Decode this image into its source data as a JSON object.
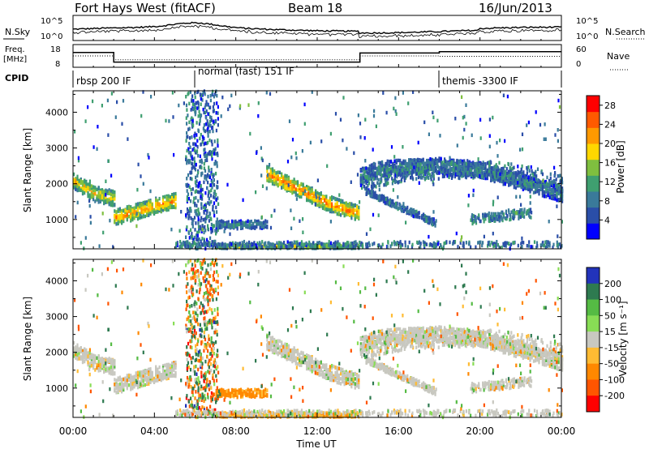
{
  "header": {
    "station": "Fort Hays West (fitACF)",
    "beam": "Beam 18",
    "date": "16/Jun/2013"
  },
  "noise_panel": {
    "left_label": "N.Sky",
    "right_label": "N.Search",
    "left_ticks": [
      "10^5",
      "10^0"
    ],
    "right_ticks": [
      "10^5",
      "10^0"
    ]
  },
  "freq_panel": {
    "left_label_line1": "Freq.",
    "left_label_line2": "[MHz]",
    "left_ticks": [
      "18",
      "8"
    ],
    "right_label": "Nave",
    "right_ticks": [
      "60",
      "0"
    ],
    "freq_segments": [
      {
        "start": 0.0,
        "end": 2.0,
        "value": 14.5
      },
      {
        "start": 2.0,
        "end": 14.1,
        "value": 10.3
      },
      {
        "start": 14.1,
        "end": 18.0,
        "value": 14.3
      },
      {
        "start": 18.0,
        "end": 24.0,
        "value": 14.9
      }
    ],
    "nave_segments": [
      {
        "start": 0.0,
        "end": 2.0,
        "value": 30
      },
      {
        "start": 2.0,
        "end": 14.1,
        "value": 20
      },
      {
        "start": 14.1,
        "end": 18.0,
        "value": 30
      },
      {
        "start": 18.0,
        "end": 24.0,
        "value": 29
      }
    ]
  },
  "cpid": {
    "label": "CPID",
    "modes": [
      {
        "text": "rbsp 200 IF",
        "start": 0.0
      },
      {
        "text": "normal (fast) 151 IF",
        "start": 6.0
      },
      {
        "text": "themis -3300 IF",
        "start": 18.0
      }
    ]
  },
  "colors": {
    "power": [
      "#0000ff",
      "#2a4ea8",
      "#3a7a9a",
      "#3f9f70",
      "#7fbf3f",
      "#ffd700",
      "#ff9900",
      "#ff5a00",
      "#ff0000"
    ],
    "velocity": [
      "#2233bb",
      "#2e7a50",
      "#55bb44",
      "#88dd55",
      "#c8c8c0",
      "#ffbb33",
      "#ff8800",
      "#ff5500",
      "#ff0000"
    ]
  },
  "chart_data": [
    {
      "type": "heatmap",
      "name": "power",
      "ylabel": "Slant Range [km]",
      "xlim": [
        0,
        24
      ],
      "ylim": [
        180,
        4600
      ],
      "yticks": [
        1000,
        2000,
        3000,
        4000
      ],
      "x_ticks": [
        "00:00",
        "04:00",
        "08:00",
        "12:00",
        "16:00",
        "20:00",
        "00:00"
      ],
      "colorbar_label": "Power [dB]",
      "colorbar_ticks": [
        "4",
        "8",
        "12",
        "16",
        "20",
        "24",
        "28"
      ],
      "colorbar_range": [
        0,
        30
      ],
      "features": [
        {
          "x": [
            0.0,
            0.5,
            1.0,
            1.5,
            2.0
          ],
          "y": [
            2080,
            1900,
            1720,
            1650,
            1580
          ],
          "power": 20
        },
        {
          "x": [
            2.0,
            3.0,
            4.0,
            5.0
          ],
          "y": [
            1050,
            1200,
            1380,
            1520
          ],
          "power": 22
        },
        {
          "x": [
            9.5,
            10.5,
            11.5,
            12.5,
            13.5,
            14.0
          ],
          "y": [
            2280,
            2000,
            1720,
            1450,
            1250,
            1180
          ],
          "power": 24
        },
        {
          "x": [
            14.1,
            15.0,
            16.0,
            18.0,
            20.0,
            22.0,
            24.0
          ],
          "y": [
            2200,
            2400,
            2450,
            2500,
            2380,
            2050,
            1700
          ],
          "power": 10
        },
        {
          "x": [
            7.0,
            9.5
          ],
          "y": [
            850,
            850
          ],
          "power": 10
        },
        {
          "x": [
            7.0,
            14.0
          ],
          "y": [
            250,
            250
          ],
          "power": 16
        }
      ]
    },
    {
      "type": "heatmap",
      "name": "velocity",
      "ylabel": "Slant Range [km]",
      "xlabel": "Time UT",
      "xlim": [
        0,
        24
      ],
      "ylim": [
        180,
        4600
      ],
      "yticks": [
        1000,
        2000,
        3000,
        4000
      ],
      "x_ticks": [
        "00:00",
        "04:00",
        "08:00",
        "12:00",
        "16:00",
        "20:00",
        "00:00"
      ],
      "colorbar_label": "Velocity [m s⁻¹]",
      "colorbar_ticks": [
        "200",
        "100",
        "50",
        "15",
        "-15",
        "-50",
        "-100",
        "-200"
      ],
      "features": [
        {
          "x": [
            0.0,
            1.0,
            2.0
          ],
          "y": [
            1800,
            1650,
            1500
          ],
          "velocity": 0
        },
        {
          "x": [
            2.0,
            3.0,
            4.0,
            5.0
          ],
          "y": [
            1000,
            1150,
            1330,
            1480
          ],
          "velocity": 0
        },
        {
          "x": [
            9.5,
            11.0,
            12.5,
            14.0
          ],
          "y": [
            2250,
            1900,
            1450,
            1150
          ],
          "velocity": 0
        },
        {
          "x": [
            14.1,
            16.0,
            20.0,
            24.0
          ],
          "y": [
            2150,
            2350,
            2300,
            1700
          ],
          "velocity": 0
        },
        {
          "x": [
            7.0,
            9.5
          ],
          "y": [
            800,
            800
          ],
          "velocity": -60
        },
        {
          "x": [
            7.0,
            14.0
          ],
          "y": [
            250,
            250
          ],
          "velocity": -40
        }
      ]
    }
  ]
}
